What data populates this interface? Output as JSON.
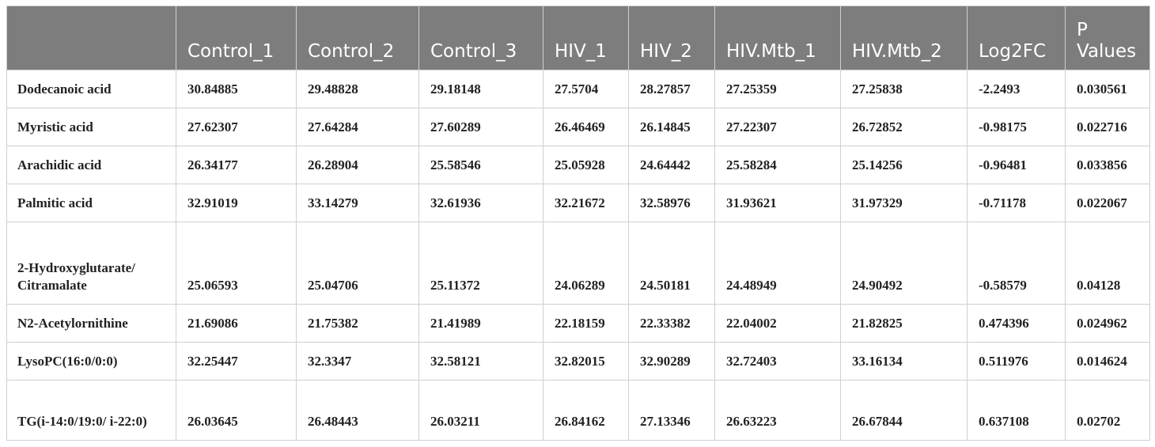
{
  "table": {
    "headers": [
      "",
      "Control_1",
      "Control_2",
      "Control_3",
      "HIV_1",
      "HIV_2",
      "HIV.Mtb_1",
      "HIV.Mtb_2",
      "Log2FC",
      "P Values"
    ],
    "rows": [
      [
        "Dodecanoic acid",
        "30.84885",
        "29.48828",
        "29.18148",
        "27.5704",
        "28.27857",
        "27.25359",
        "27.25838",
        "-2.2493",
        "0.030561"
      ],
      [
        "Myristic acid",
        "27.62307",
        "27.64284",
        "27.60289",
        "26.46469",
        "26.14845",
        "27.22307",
        "26.72852",
        "-0.98175",
        "0.022716"
      ],
      [
        "Arachidic acid",
        "26.34177",
        "26.28904",
        "25.58546",
        "25.05928",
        "24.64442",
        "25.58284",
        "25.14256",
        "-0.96481",
        "0.033856"
      ],
      [
        "Palmitic acid",
        "32.91019",
        "33.14279",
        "32.61936",
        "32.21672",
        "32.58976",
        "31.93621",
        "31.97329",
        "-0.71178",
        "0.022067"
      ],
      [
        "2-Hydroxyglutarate/ Citramalate",
        "25.06593",
        "25.04706",
        "25.11372",
        "24.06289",
        "24.50181",
        "24.48949",
        "24.90492",
        "-0.58579",
        "0.04128"
      ],
      [
        "N2-Acetylornithine",
        "21.69086",
        "21.75382",
        "21.41989",
        "22.18159",
        "22.33382",
        "22.04002",
        "21.82825",
        "0.474396",
        "0.024962"
      ],
      [
        "LysoPC(16:0/0:0)",
        "32.25447",
        "32.3347",
        "32.58121",
        "32.82015",
        "32.90289",
        "32.72403",
        "33.16134",
        "0.511976",
        "0.014624"
      ],
      [
        "TG(i-14:0/19:0/ i-22:0)",
        "26.03645",
        "26.48443",
        "26.03211",
        "26.84162",
        "27.13346",
        "26.63223",
        "26.67844",
        "0.637108",
        "0.02702"
      ]
    ]
  }
}
